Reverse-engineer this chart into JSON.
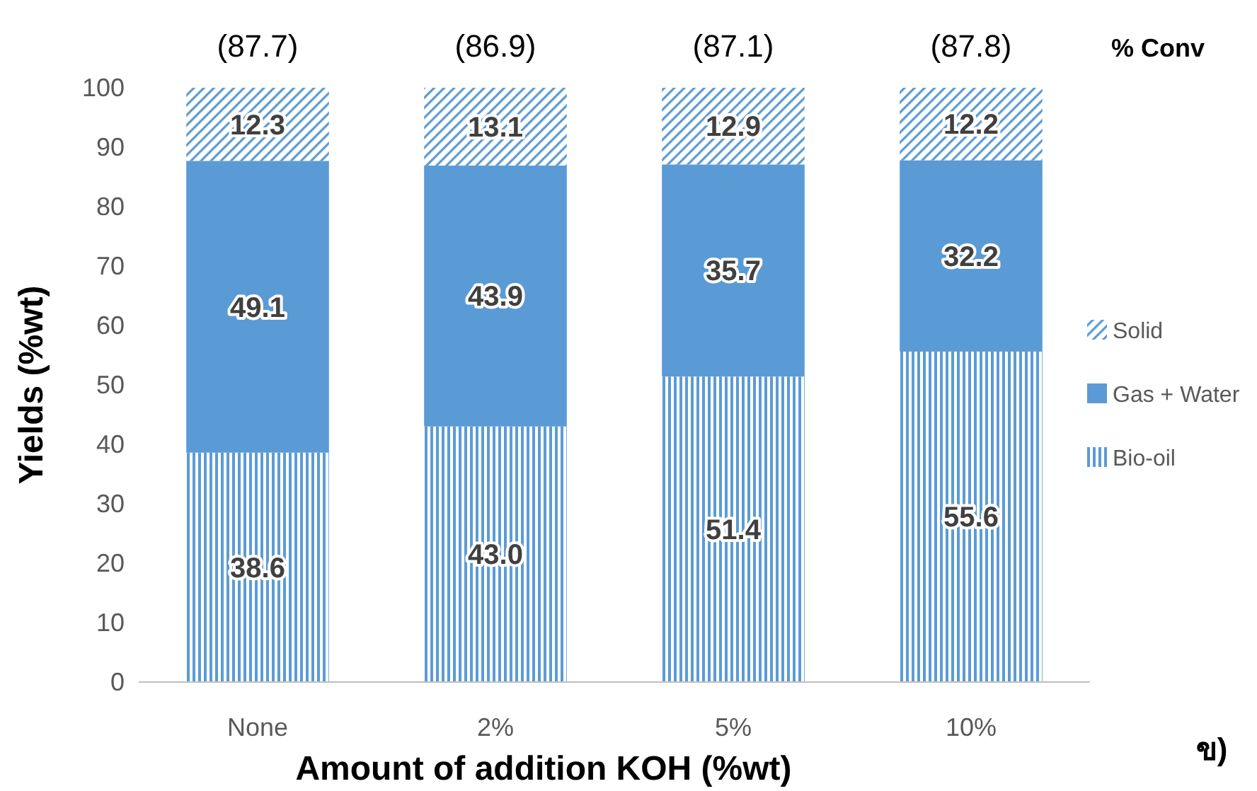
{
  "chart_data": {
    "type": "bar",
    "stacked": true,
    "xlabel": "Amount of addition KOH (%wt)",
    "ylabel": "Yields (%wt)",
    "categories": [
      "None",
      "2%",
      "5%",
      "10%"
    ],
    "series": [
      {
        "name": "Bio-oil",
        "color": "#5b9bd5",
        "values": [
          38.6,
          43.0,
          51.4,
          55.6
        ],
        "value_labels": [
          "38.6",
          "43.0",
          "51.4",
          "55.6"
        ]
      },
      {
        "name": "Gas + Water",
        "color": "#5b9bd5",
        "values": [
          49.1,
          43.9,
          35.7,
          32.2
        ],
        "value_labels": [
          "49.1",
          "43.9",
          "35.7",
          "32.2"
        ]
      },
      {
        "name": "Solid",
        "color": "#5b9bd5",
        "values": [
          12.3,
          13.1,
          12.9,
          12.2
        ],
        "value_labels": [
          "12.3",
          "13.1",
          "12.9",
          "12.2"
        ]
      }
    ],
    "ylim": [
      0,
      100
    ],
    "yticks": [
      0,
      10,
      20,
      30,
      40,
      50,
      60,
      70,
      80,
      90,
      100
    ],
    "grid": false,
    "legend": "right",
    "annotations": [
      "(87.7)",
      "(86.9)",
      "(87.1)",
      "(87.8)",
      "% Conv",
      "ข)"
    ]
  }
}
